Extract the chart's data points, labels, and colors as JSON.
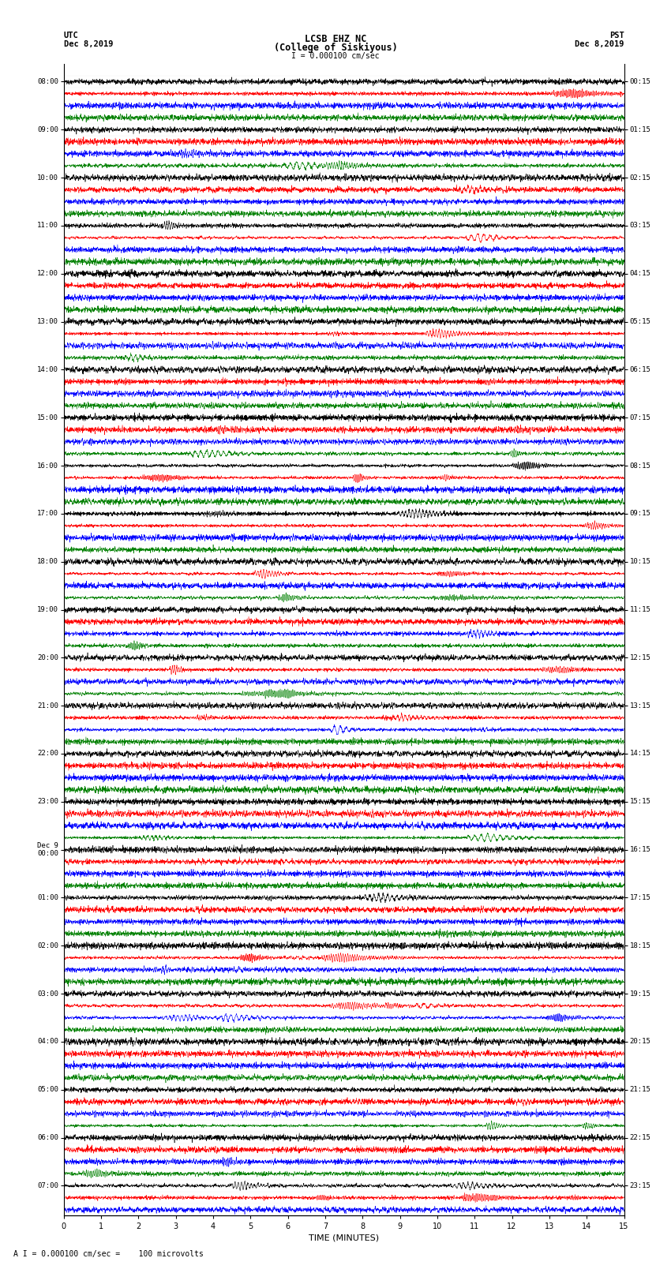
{
  "title_line1": "LCSB EHZ NC",
  "title_line2": "(College of Siskiyous)",
  "scale_text": "I = 0.000100 cm/sec",
  "footer_text": "A I = 0.000100 cm/sec =    100 microvolts",
  "utc_label": "UTC",
  "utc_date": "Dec 8,2019",
  "pst_label": "PST",
  "pst_date": "Dec 8,2019",
  "xlabel": "TIME (MINUTES)",
  "colors": [
    "black",
    "red",
    "blue",
    "green"
  ],
  "left_times": [
    "08:00",
    "09:00",
    "10:00",
    "11:00",
    "12:00",
    "13:00",
    "14:00",
    "15:00",
    "16:00",
    "17:00",
    "18:00",
    "19:00",
    "20:00",
    "21:00",
    "22:00",
    "23:00",
    "Dec 9\n00:00",
    "01:00",
    "02:00",
    "03:00",
    "04:00",
    "05:00",
    "06:00",
    "07:00"
  ],
  "right_times": [
    "00:15",
    "01:15",
    "02:15",
    "03:15",
    "04:15",
    "05:15",
    "06:15",
    "07:15",
    "08:15",
    "09:15",
    "10:15",
    "11:15",
    "12:15",
    "13:15",
    "14:15",
    "15:15",
    "16:15",
    "17:15",
    "18:15",
    "19:15",
    "20:15",
    "21:15",
    "22:15",
    "23:15"
  ],
  "n_rows": 95,
  "rows_per_hour": 4,
  "n_hours": 24,
  "xmin": 0,
  "xmax": 15,
  "xticks": [
    0,
    1,
    2,
    3,
    4,
    5,
    6,
    7,
    8,
    9,
    10,
    11,
    12,
    13,
    14,
    15
  ],
  "bg_color": "white",
  "linewidth": 0.4,
  "samples_per_minute": 200
}
